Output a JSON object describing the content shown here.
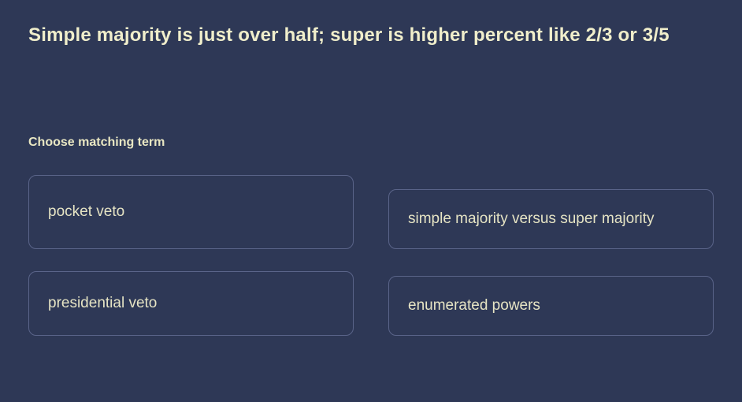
{
  "question": {
    "prompt": "Simple majority is just over half; super is higher percent like 2/3 or 3/5",
    "instruction": "Choose matching term"
  },
  "options": [
    {
      "label": "pocket veto"
    },
    {
      "label": "simple majority versus super majority"
    },
    {
      "label": "presidential veto"
    },
    {
      "label": "enumerated powers"
    }
  ],
  "style": {
    "background_color": "#2e3856",
    "text_color": "#f0eecb",
    "option_border_color": "#5a6489",
    "option_text_color": "#e6e4c4",
    "prompt_fontsize": 24,
    "instruction_fontsize": 16,
    "option_fontsize": 19,
    "border_radius": 10
  }
}
